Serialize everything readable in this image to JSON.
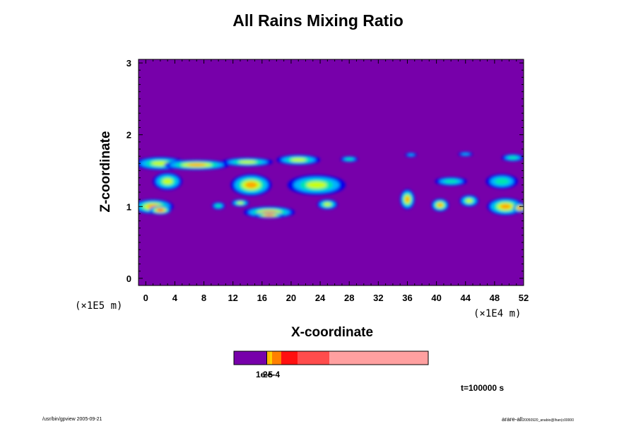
{
  "chart_data": {
    "type": "heatmap",
    "title": "All Rains Mixing Ratio",
    "xlabel": "X-coordinate",
    "ylabel": "Z-coordinate",
    "x_unit": "(×1E4 m)",
    "y_unit": "(×1E5 m)",
    "xlim": [
      -1,
      52
    ],
    "ylim": [
      -0.1,
      3.05
    ],
    "x_ticks": [
      0,
      4,
      8,
      12,
      16,
      20,
      24,
      28,
      32,
      36,
      40,
      44,
      48,
      52
    ],
    "y_ticks": [
      0,
      1,
      2,
      3
    ],
    "colorbar_labels": [
      "1e-5",
      "2e-4"
    ],
    "cells": [
      {
        "x": 2.0,
        "z": 1.6,
        "rx": 3.5,
        "rz": 0.09,
        "level": 3
      },
      {
        "x": 7.0,
        "z": 1.58,
        "rx": 4.5,
        "rz": 0.07,
        "level": 4
      },
      {
        "x": 14.0,
        "z": 1.62,
        "rx": 3.5,
        "rz": 0.06,
        "level": 3
      },
      {
        "x": 21.0,
        "z": 1.65,
        "rx": 3.0,
        "rz": 0.07,
        "level": 3
      },
      {
        "x": 28.0,
        "z": 1.66,
        "rx": 1.2,
        "rz": 0.04,
        "level": 2
      },
      {
        "x": 36.5,
        "z": 1.72,
        "rx": 0.8,
        "rz": 0.03,
        "level": 1
      },
      {
        "x": 44.0,
        "z": 1.73,
        "rx": 1.0,
        "rz": 0.03,
        "level": 1
      },
      {
        "x": 50.5,
        "z": 1.68,
        "rx": 1.5,
        "rz": 0.05,
        "level": 2
      },
      {
        "x": 3.0,
        "z": 1.35,
        "rx": 2.0,
        "rz": 0.12,
        "level": 3
      },
      {
        "x": 14.5,
        "z": 1.3,
        "rx": 2.8,
        "rz": 0.15,
        "level": 4
      },
      {
        "x": 23.5,
        "z": 1.3,
        "rx": 4.0,
        "rz": 0.14,
        "level": 3
      },
      {
        "x": 42.0,
        "z": 1.35,
        "rx": 2.2,
        "rz": 0.06,
        "level": 2
      },
      {
        "x": 49.0,
        "z": 1.35,
        "rx": 2.2,
        "rz": 0.1,
        "level": 2
      },
      {
        "x": 1.0,
        "z": 1.0,
        "rx": 2.8,
        "rz": 0.1,
        "level": 4
      },
      {
        "x": 2.0,
        "z": 0.95,
        "rx": 1.5,
        "rz": 0.06,
        "level": 5
      },
      {
        "x": 17.0,
        "z": 0.92,
        "rx": 3.5,
        "rz": 0.08,
        "level": 4
      },
      {
        "x": 17.0,
        "z": 0.88,
        "rx": 2.0,
        "rz": 0.04,
        "level": 5
      },
      {
        "x": 13.0,
        "z": 1.05,
        "rx": 1.2,
        "rz": 0.05,
        "level": 3
      },
      {
        "x": 10.0,
        "z": 1.01,
        "rx": 0.9,
        "rz": 0.05,
        "level": 2
      },
      {
        "x": 25.0,
        "z": 1.03,
        "rx": 1.4,
        "rz": 0.07,
        "level": 3
      },
      {
        "x": 36.0,
        "z": 1.1,
        "rx": 1.0,
        "rz": 0.14,
        "level": 4
      },
      {
        "x": 40.5,
        "z": 1.02,
        "rx": 1.2,
        "rz": 0.09,
        "level": 4
      },
      {
        "x": 44.5,
        "z": 1.08,
        "rx": 1.3,
        "rz": 0.08,
        "level": 3
      },
      {
        "x": 49.5,
        "z": 1.0,
        "rx": 2.5,
        "rz": 0.12,
        "level": 4
      },
      {
        "x": 51.5,
        "z": 0.98,
        "rx": 1.0,
        "rz": 0.06,
        "level": 5
      }
    ]
  },
  "time_label": "t=100000 s",
  "footer_left": "/usr/bin/gpview 2005-09-21",
  "footer_right_main": "arare-all",
  "footer_right_small": "20050920_anabio@lhan(c00000",
  "colors": {
    "background_field": "#7700aa",
    "levels": [
      "#0000ee",
      "#00b4ff",
      "#00e6aa",
      "#c8ff00",
      "#ffa500",
      "#ff2020"
    ],
    "colorbar": [
      "#7700aa",
      "#ffb800",
      "#ff8000",
      "#ff1010",
      "#ff4c4c",
      "#ffa0a0"
    ]
  }
}
